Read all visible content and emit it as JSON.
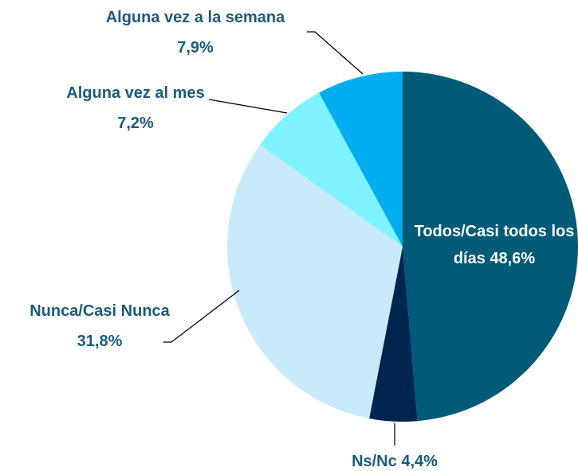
{
  "chart_data": {
    "type": "pie",
    "categories": [
      "Todos/Casi todos los días",
      "Ns/Nc",
      "Nunca/Casi Nunca",
      "Alguna vez al mes",
      "Alguna vez a la semana"
    ],
    "values": [
      48.6,
      4.4,
      31.8,
      7.2,
      7.9
    ],
    "value_labels": [
      "48,6%",
      "4,4%",
      "31,8%",
      "7,2%",
      "7,9%"
    ],
    "colors": [
      "#005a78",
      "#00264f",
      "#c8eafb",
      "#7ef2ff",
      "#00aeef"
    ]
  }
}
